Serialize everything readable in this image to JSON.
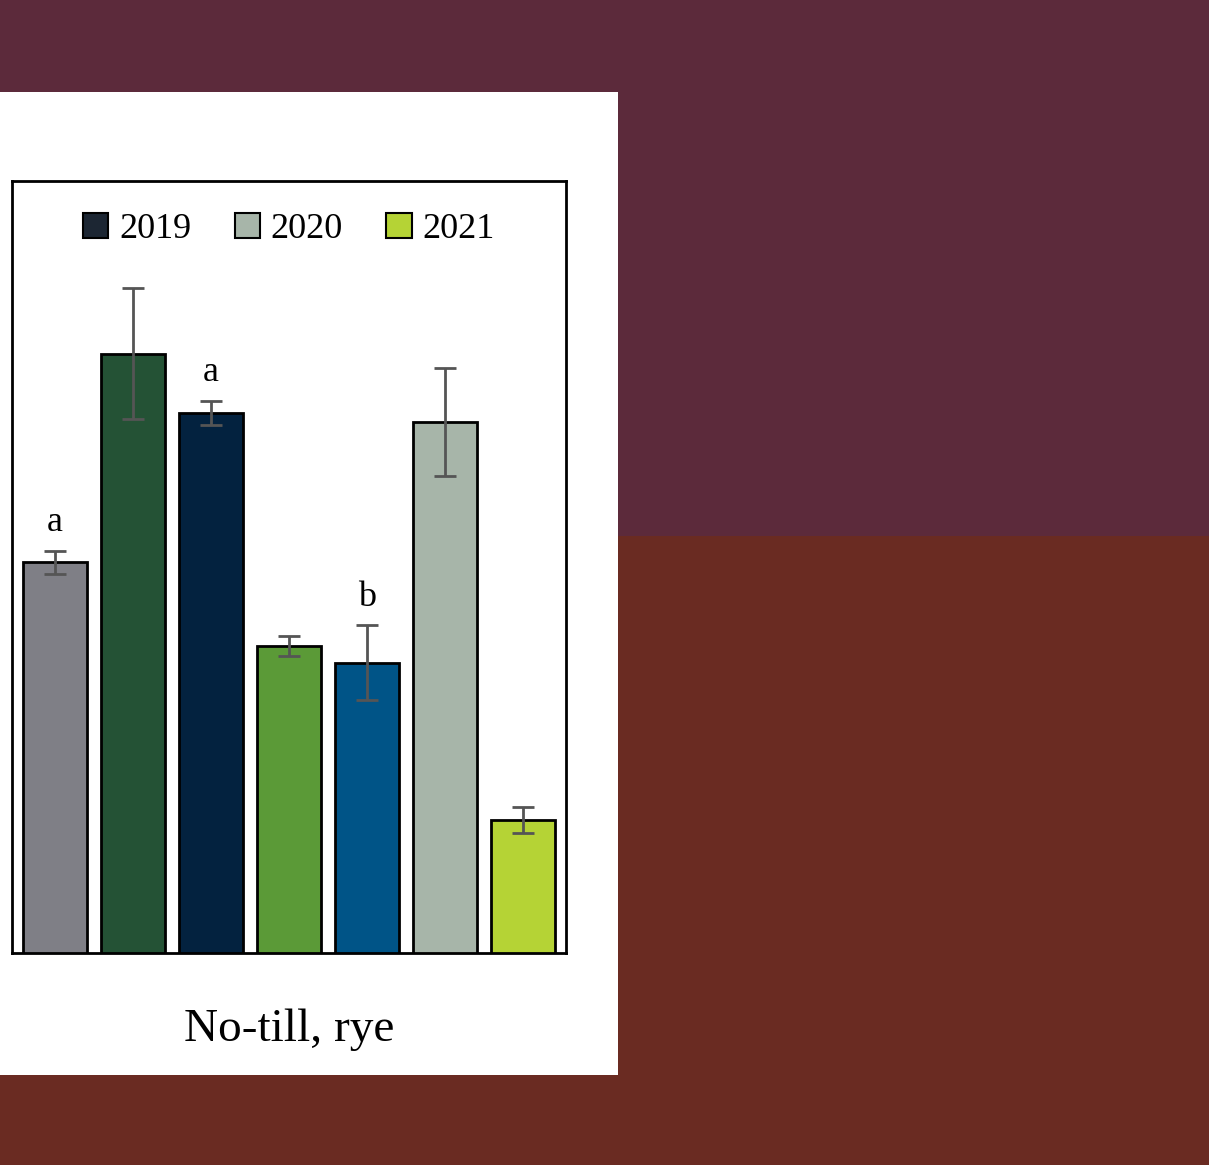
{
  "chart_data": {
    "type": "bar",
    "x_label": "No-till, rye",
    "categories": [
      null,
      null,
      null,
      null,
      null,
      null,
      null
    ],
    "values": [
      50.6,
      77.6,
      69.9,
      39.8,
      37.6,
      68.7,
      17.2
    ],
    "errors": [
      1.5,
      8.5,
      1.6,
      1.3,
      4.8,
      7.0,
      1.7
    ],
    "colors": [
      "#7f7f86",
      "#245235",
      "#03223f",
      "#5b9a37",
      "#005487",
      "#a7b5a9",
      "#b5d335"
    ],
    "annotations": [
      {
        "index": 0,
        "text": "a"
      },
      {
        "index": 2,
        "text": "a"
      },
      {
        "index": 4,
        "text": "b"
      }
    ],
    "legend": "upper center",
    "legend_entries": [
      {
        "name": "2019",
        "color": "#1c2633"
      },
      {
        "name": "2020",
        "color": "#a7b5a9"
      },
      {
        "name": "2021",
        "color": "#b5d335"
      }
    ],
    "ylim": [
      0,
      100
    ],
    "tick_labels": false
  }
}
